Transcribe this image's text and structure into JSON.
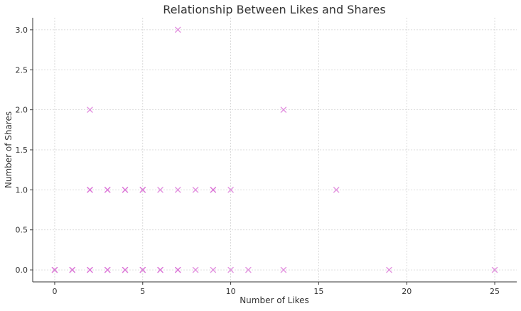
{
  "chart_data": {
    "type": "scatter",
    "title": "Relationship Between Likes and Shares",
    "xlabel": "Number of Likes",
    "ylabel": "Number of Shares",
    "xlim": [
      -1.25,
      26.25
    ],
    "ylim": [
      -0.15,
      3.15
    ],
    "xticks": [
      0,
      5,
      10,
      15,
      20,
      25
    ],
    "yticks": [
      0.0,
      0.5,
      1.0,
      1.5,
      2.0,
      2.5,
      3.0
    ],
    "xtick_labels": [
      "0",
      "5",
      "10",
      "15",
      "20",
      "25"
    ],
    "ytick_labels": [
      "0.0",
      "0.5",
      "1.0",
      "1.5",
      "2.0",
      "2.5",
      "3.0"
    ],
    "grid": true,
    "marker": "x",
    "color": "#da70d6",
    "points": [
      {
        "x": 0,
        "y": 0
      },
      {
        "x": 0,
        "y": 0
      },
      {
        "x": 1,
        "y": 0
      },
      {
        "x": 1,
        "y": 0
      },
      {
        "x": 2,
        "y": 0
      },
      {
        "x": 2,
        "y": 0
      },
      {
        "x": 2,
        "y": 1
      },
      {
        "x": 2,
        "y": 1
      },
      {
        "x": 2,
        "y": 2
      },
      {
        "x": 3,
        "y": 0
      },
      {
        "x": 3,
        "y": 0
      },
      {
        "x": 3,
        "y": 1
      },
      {
        "x": 3,
        "y": 1
      },
      {
        "x": 4,
        "y": 0
      },
      {
        "x": 4,
        "y": 0
      },
      {
        "x": 4,
        "y": 1
      },
      {
        "x": 4,
        "y": 1
      },
      {
        "x": 5,
        "y": 0
      },
      {
        "x": 5,
        "y": 0
      },
      {
        "x": 5,
        "y": 1
      },
      {
        "x": 5,
        "y": 1
      },
      {
        "x": 6,
        "y": 0
      },
      {
        "x": 6,
        "y": 0
      },
      {
        "x": 6,
        "y": 1
      },
      {
        "x": 7,
        "y": 0
      },
      {
        "x": 7,
        "y": 0
      },
      {
        "x": 7,
        "y": 1
      },
      {
        "x": 7,
        "y": 3
      },
      {
        "x": 8,
        "y": 0
      },
      {
        "x": 8,
        "y": 1
      },
      {
        "x": 9,
        "y": 0
      },
      {
        "x": 9,
        "y": 1
      },
      {
        "x": 9,
        "y": 1
      },
      {
        "x": 10,
        "y": 0
      },
      {
        "x": 10,
        "y": 1
      },
      {
        "x": 11,
        "y": 0
      },
      {
        "x": 13,
        "y": 0
      },
      {
        "x": 13,
        "y": 2
      },
      {
        "x": 16,
        "y": 1
      },
      {
        "x": 19,
        "y": 0
      },
      {
        "x": 25,
        "y": 0
      }
    ]
  }
}
